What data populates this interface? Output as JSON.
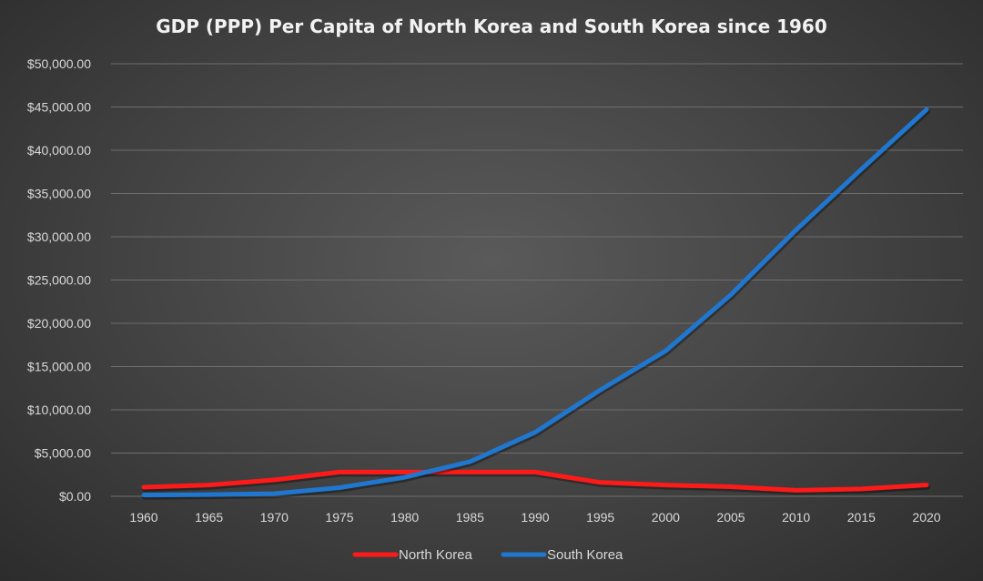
{
  "chart_data": {
    "type": "line",
    "title": "GDP (PPP) Per Capita of North Korea and South Korea since 1960",
    "xlabel": "",
    "ylabel": "",
    "x": [
      "1960",
      "1965",
      "1970",
      "1975",
      "1980",
      "1985",
      "1990",
      "1995",
      "2000",
      "2005",
      "2010",
      "2015",
      "2020"
    ],
    "ylim": [
      0,
      50000
    ],
    "yticks": [
      0,
      5000,
      10000,
      15000,
      20000,
      25000,
      30000,
      35000,
      40000,
      45000,
      50000
    ],
    "ytick_labels": [
      "$0.00",
      "$5,000.00",
      "$10,000.00",
      "$15,000.00",
      "$20,000.00",
      "$25,000.00",
      "$30,000.00",
      "$35,000.00",
      "$40,000.00",
      "$45,000.00",
      "$50,000.00"
    ],
    "grid": true,
    "legend_position": "bottom",
    "series": [
      {
        "name": "North Korea",
        "color": "#ff1a1a",
        "values": [
          1050,
          1300,
          1900,
          2800,
          2800,
          2800,
          2800,
          1600,
          1300,
          1100,
          700,
          850,
          1300
        ]
      },
      {
        "name": "South Korea",
        "color": "#1f77d0",
        "values": [
          150,
          200,
          300,
          1000,
          2200,
          4000,
          7400,
          12300,
          16800,
          23300,
          30800,
          37800,
          44700
        ]
      }
    ]
  }
}
